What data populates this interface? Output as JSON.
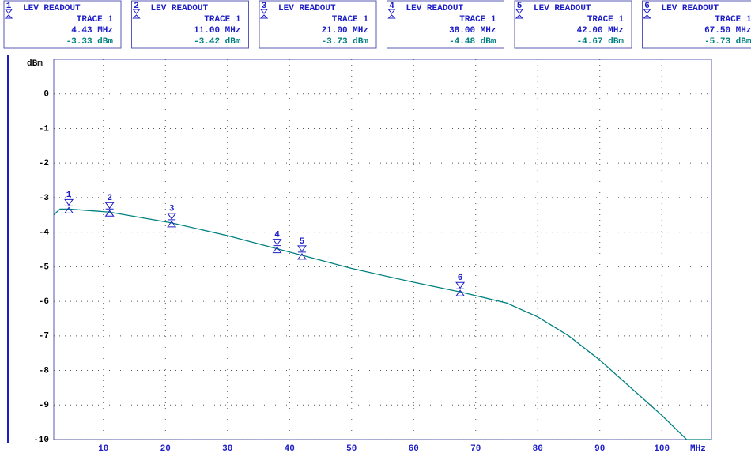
{
  "chart_data": {
    "type": "line",
    "y_label": "dBm",
    "x_label": "MHz",
    "xlim": [
      2,
      108
    ],
    "ylim": [
      -10,
      1
    ],
    "xticks": [
      10,
      20,
      30,
      40,
      50,
      60,
      70,
      80,
      90,
      100
    ],
    "yticks": [
      0,
      -1,
      -2,
      -3,
      -4,
      -5,
      -6,
      -7,
      -8,
      -9,
      -10
    ],
    "grid": true,
    "series": [
      {
        "name": "TRACE 1",
        "color": "#008080",
        "x": [
          2,
          3,
          4.43,
          11,
          21,
          30,
          38,
          42,
          50,
          60,
          67.5,
          75,
          80,
          85,
          90,
          95,
          100,
          104,
          108
        ],
        "values": [
          -3.5,
          -3.33,
          -3.33,
          -3.42,
          -3.73,
          -4.1,
          -4.48,
          -4.67,
          -5.05,
          -5.45,
          -5.73,
          -6.05,
          -6.45,
          -7.0,
          -7.7,
          -8.5,
          -9.3,
          -10,
          -10
        ]
      }
    ],
    "markers": {
      "readout_title": "LEV READOUT",
      "color": "#1c1cc8",
      "ids": [
        "1",
        "2",
        "3",
        "4",
        "5",
        "6"
      ],
      "x": [
        4.43,
        11,
        21,
        38,
        42,
        67.5
      ],
      "values": [
        -3.33,
        -3.42,
        -3.73,
        -4.48,
        -4.67,
        -5.73
      ],
      "freq_labels": [
        "4.43 MHz",
        "11.00 MHz",
        "21.00 MHz",
        "38.00 MHz",
        "42.00 MHz",
        "67.50 MHz"
      ],
      "value_labels": [
        "-3.33 dBm",
        "-3.42 dBm",
        "-3.73 dBm",
        "-4.48 dBm",
        "-4.67 dBm",
        "-5.73 dBm"
      ]
    }
  }
}
